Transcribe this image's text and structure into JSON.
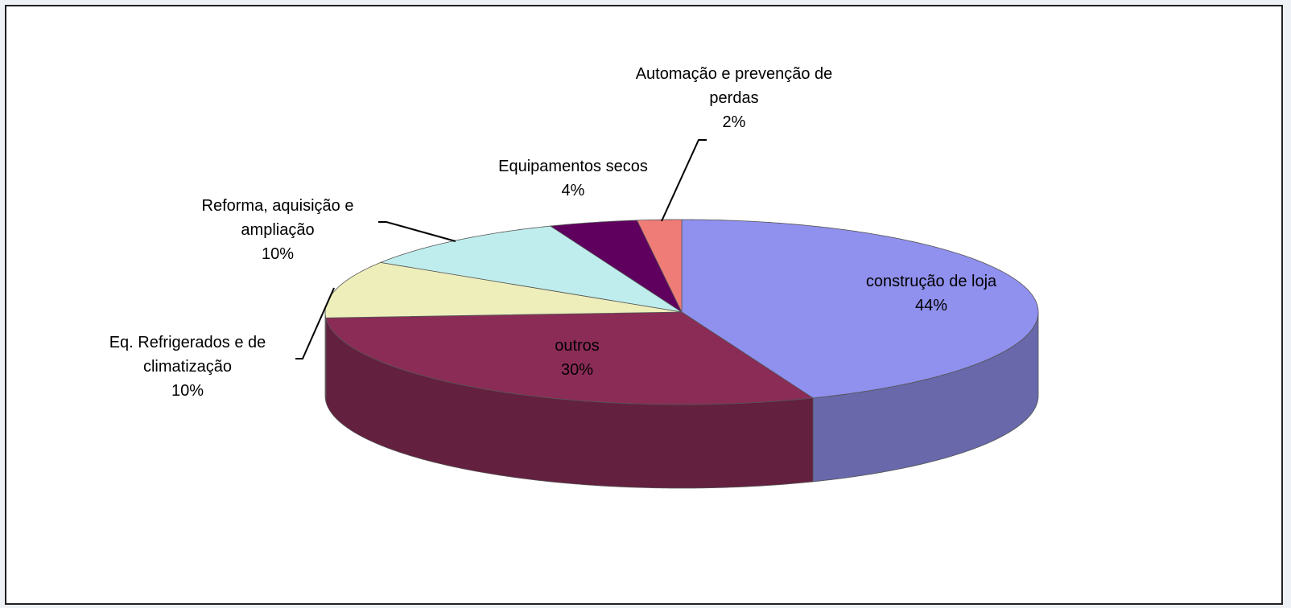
{
  "chart_data": {
    "type": "pie3d",
    "categories": [
      "construção de loja",
      "outros",
      "Eq. Refrigerados e de climatização",
      "Reforma, aquisição e ampliação",
      "Equipamentos secos",
      "Automação e prevenção de perdas"
    ],
    "values": [
      44,
      30,
      10,
      10,
      4,
      2
    ],
    "value_labels": [
      "44%",
      "30%",
      "10%",
      "10%",
      "4%",
      "2%"
    ],
    "colors": [
      "#9090ee",
      "#8b2c57",
      "#eeeebb",
      "#bfeded",
      "#5f005f",
      "#f07c78"
    ]
  }
}
